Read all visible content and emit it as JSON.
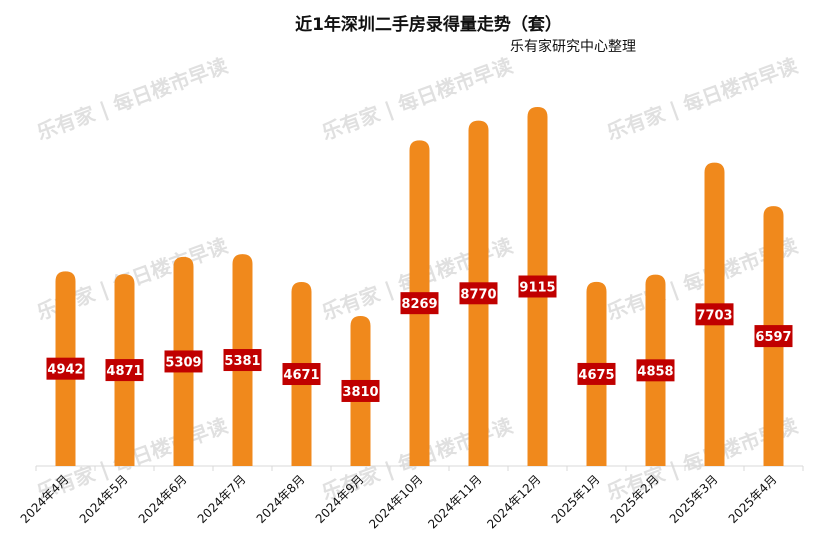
{
  "chart_data": {
    "type": "bar",
    "title": "近1年深圳二手房录得量走势（套）",
    "subtitle": "乐有家研究中心整理",
    "categories": [
      "2024年4月",
      "2024年5月",
      "2024年6月",
      "2024年7月",
      "2024年8月",
      "2024年9月",
      "2024年10月",
      "2024年11月",
      "2024年12月",
      "2025年1月",
      "2025年2月",
      "2025年3月",
      "2025年4月"
    ],
    "values": [
      4942,
      4871,
      5309,
      5381,
      4671,
      3810,
      8269,
      8770,
      9115,
      4675,
      4858,
      7703,
      6597
    ],
    "xlabel": "",
    "ylabel": "",
    "ylim": [
      0,
      9115
    ],
    "grid": false,
    "bar_color": "#F0891C",
    "label_bg": "#C00000"
  },
  "watermark": {
    "logo": "乐有家",
    "text": "每日楼市早读"
  }
}
